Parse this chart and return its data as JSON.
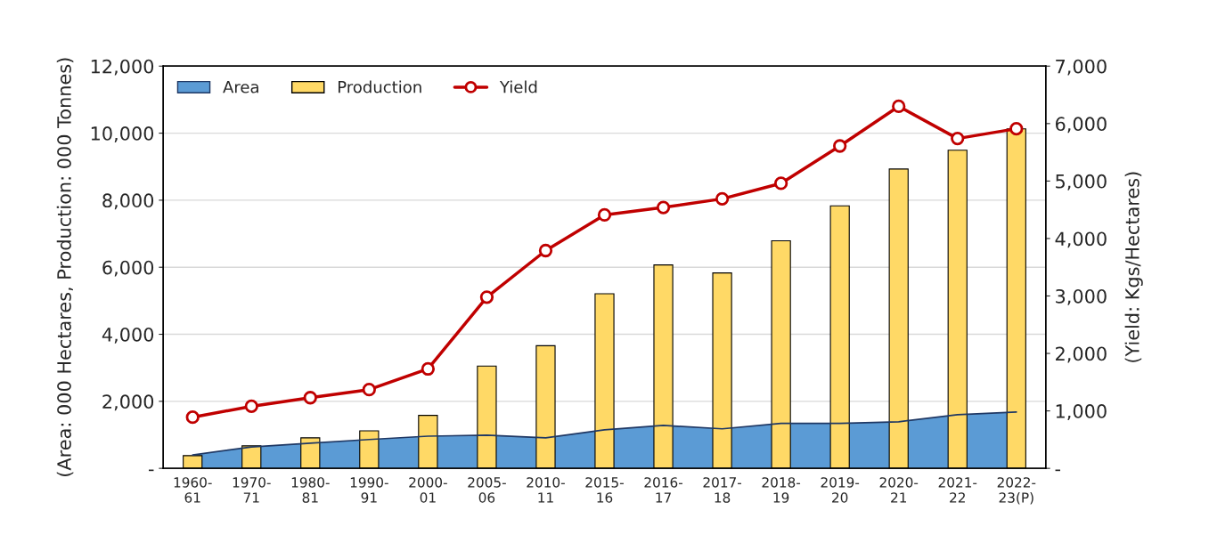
{
  "chart_data": {
    "type": "bar",
    "ylabel": "(Area: 000 Hectares, Production: 000 Tonnes)",
    "y2label": "(Yield: Kgs/Hectares)",
    "categories": [
      "1960-\n61",
      "1970-\n71",
      "1980-\n81",
      "1990-\n91",
      "2000-\n01",
      "2005-\n06",
      "2010-\n11",
      "2015-\n16",
      "2016-\n17",
      "2017-\n18",
      "2018-\n19",
      "2019-\n20",
      "2020-\n21",
      "2021-\n22",
      "2022-\n23(P)"
    ],
    "series": [
      {
        "name": "Area",
        "type": "area",
        "color": "#5b9bd5",
        "values": [
          400,
          640,
          750,
          860,
          960,
          990,
          910,
          1150,
          1280,
          1180,
          1340,
          1340,
          1390,
          1600,
          1680
        ]
      },
      {
        "name": "Production",
        "color": "#ffd966",
        "values": [
          380,
          670,
          910,
          1120,
          1580,
          3050,
          3660,
          5210,
          6070,
          5830,
          6790,
          7830,
          8930,
          9490,
          10130
        ]
      },
      {
        "name": "Yield",
        "type": "line",
        "axis": "y2",
        "color": "#c00000",
        "marker": "circle",
        "values": [
          890,
          1080,
          1230,
          1370,
          1730,
          2980,
          3790,
          4410,
          4540,
          4690,
          4960,
          5610,
          6300,
          5740,
          5910
        ]
      }
    ],
    "ylim": [
      0,
      12000
    ],
    "yticks": [
      {
        "value": 0,
        "label": "-"
      },
      {
        "value": 2000,
        "label": "2,000"
      },
      {
        "value": 4000,
        "label": "4,000"
      },
      {
        "value": 6000,
        "label": "6,000"
      },
      {
        "value": 8000,
        "label": "8,000"
      },
      {
        "value": 10000,
        "label": "10,000"
      },
      {
        "value": 12000,
        "label": "12,000"
      }
    ],
    "y2lim": [
      0,
      7000
    ],
    "y2ticks": [
      {
        "value": 0,
        "label": "-"
      },
      {
        "value": 1000,
        "label": "1,000"
      },
      {
        "value": 2000,
        "label": "2,000"
      },
      {
        "value": 3000,
        "label": "3,000"
      },
      {
        "value": 4000,
        "label": "4,000"
      },
      {
        "value": 5000,
        "label": "5,000"
      },
      {
        "value": 6000,
        "label": "6,000"
      },
      {
        "value": 7000,
        "label": "7,000"
      }
    ],
    "grid": "y",
    "legend": "top left"
  }
}
